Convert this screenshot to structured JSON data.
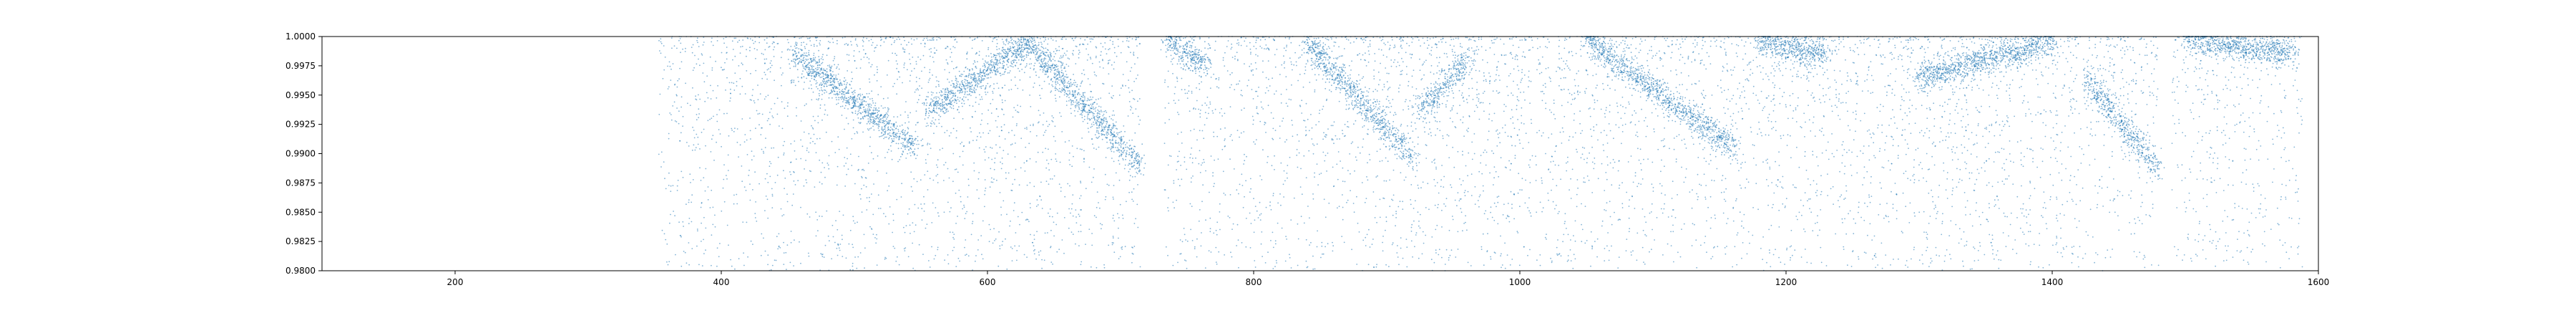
{
  "chart_data": {
    "type": "scatter",
    "title": "",
    "xlabel": "",
    "ylabel": "",
    "xlim": [
      100,
      1600
    ],
    "ylim": [
      0.98,
      1.0
    ],
    "x_ticks": [
      200,
      400,
      600,
      800,
      1000,
      1200,
      1400,
      1600
    ],
    "x_tick_labels": [
      "200",
      "400",
      "600",
      "800",
      "1000",
      "1200",
      "1400",
      "1600"
    ],
    "y_ticks": [
      0.98,
      0.9825,
      0.985,
      0.9875,
      0.99,
      0.9925,
      0.995,
      0.9975,
      1.0
    ],
    "y_tick_labels": [
      "0.9800",
      "0.9825",
      "0.9850",
      "0.9875",
      "0.9900",
      "0.9925",
      "0.9950",
      "0.9975",
      "1.0000"
    ],
    "grid": false,
    "marker_color": "#1f77b4",
    "series": [
      {
        "segments": [
          {
            "x": [
              353,
              432
            ],
            "density": 0.55
          },
          {
            "x": [
              432,
              555
            ],
            "density": 0.65,
            "trend": {
              "x": [
                455,
                545
              ],
              "y": [
                0.9985,
                0.9905
              ]
            }
          },
          {
            "x": [
              555,
              715
            ],
            "density": 0.7,
            "trend": {
              "x": [
                555,
                630
              ],
              "y": [
                0.9935,
                0.9995
              ]
            }
          },
          {
            "x": [
              555,
              715
            ],
            "density": 0.0,
            "trend": {
              "x": [
                630,
                715
              ],
              "y": [
                0.9995,
                0.9888
              ]
            }
          },
          {
            "x": [
              733,
              800
            ],
            "density": 0.6,
            "trend": {
              "x": [
                735,
                765
              ],
              "y": [
                0.9998,
                0.9975
              ]
            }
          },
          {
            "x": [
              800,
              920
            ],
            "density": 0.65,
            "trend": {
              "x": [
                840,
                920
              ],
              "y": [
                0.9995,
                0.9895
              ]
            }
          },
          {
            "x": [
              920,
              1000
            ],
            "density": 0.75,
            "trend": {
              "x": [
                925,
                960
              ],
              "y": [
                0.9935,
                0.998
              ]
            }
          },
          {
            "x": [
              1000,
              1160
            ],
            "density": 0.6,
            "trend": {
              "x": [
                1050,
                1160
              ],
              "y": [
                0.9998,
                0.9905
              ]
            }
          },
          {
            "x": [
              1160,
              1290
            ],
            "density": 0.65,
            "trend": {
              "x": [
                1180,
                1230
              ],
              "y": [
                0.9995,
                0.9985
              ]
            }
          },
          {
            "x": [
              1290,
              1420
            ],
            "density": 0.75,
            "trend": {
              "x": [
                1300,
                1400
              ],
              "y": [
                0.9965,
                0.9995
              ]
            }
          },
          {
            "x": [
              1420,
              1480
            ],
            "density": 0.55,
            "trend": {
              "x": [
                1425,
                1480
              ],
              "y": [
                0.9965,
                0.9885
              ]
            }
          },
          {
            "x": [
              1490,
              1588
            ],
            "density": 0.55,
            "trend": {
              "x": [
                1500,
                1580
              ],
              "y": [
                0.9998,
                0.9985
              ]
            }
          }
        ]
      }
    ]
  }
}
